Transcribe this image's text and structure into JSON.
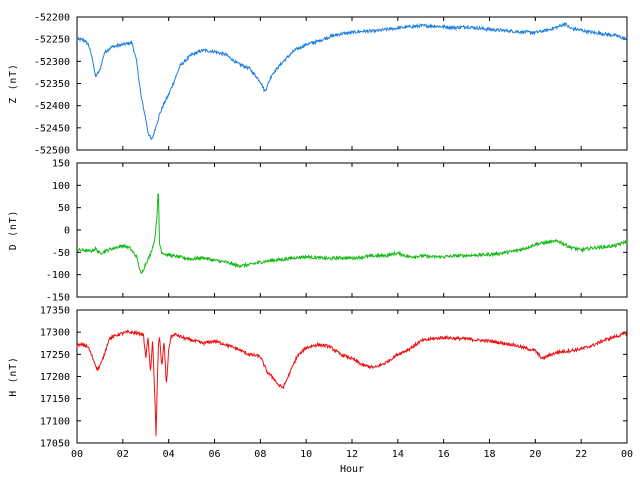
{
  "chart_data": [
    {
      "type": "line",
      "ylabel": "Z (nT)",
      "ylim": [
        -52500,
        -52200
      ],
      "yticks": [
        "-52200",
        "-52250",
        "-52300",
        "-52350",
        "-52400",
        "-52450",
        "-52500"
      ],
      "xlim": [
        0,
        24
      ],
      "color": "#1f7fe0",
      "x": [
        0,
        0.3,
        0.5,
        0.7,
        0.8,
        1.0,
        1.2,
        1.5,
        2.0,
        2.4,
        2.6,
        2.8,
        3.0,
        3.1,
        3.25,
        3.4,
        3.6,
        3.8,
        4.0,
        4.2,
        4.5,
        5.0,
        5.5,
        6.0,
        6.5,
        7.0,
        7.5,
        8.0,
        8.2,
        8.5,
        9.0,
        9.5,
        10.0,
        10.5,
        11.0,
        11.5,
        12.0,
        12.5,
        13.0,
        13.5,
        14.0,
        14.5,
        15.0,
        15.5,
        16.0,
        16.5,
        17.0,
        17.5,
        18.0,
        18.5,
        19.0,
        19.5,
        20.0,
        20.5,
        21.0,
        21.3,
        21.5,
        22.0,
        22.5,
        23.0,
        23.5,
        24.0
      ],
      "values": [
        -52250,
        -52252,
        -52262,
        -52300,
        -52335,
        -52320,
        -52280,
        -52268,
        -52262,
        -52258,
        -52300,
        -52380,
        -52430,
        -52460,
        -52478,
        -52455,
        -52420,
        -52395,
        -52375,
        -52350,
        -52310,
        -52285,
        -52275,
        -52278,
        -52285,
        -52305,
        -52315,
        -52345,
        -52368,
        -52330,
        -52300,
        -52275,
        -52262,
        -52255,
        -52245,
        -52238,
        -52235,
        -52232,
        -52232,
        -52228,
        -52225,
        -52222,
        -52220,
        -52220,
        -52222,
        -52224,
        -52222,
        -52225,
        -52228,
        -52230,
        -52232,
        -52234,
        -52235,
        -52230,
        -52222,
        -52215,
        -52225,
        -52230,
        -52235,
        -52238,
        -52242,
        -52250
      ]
    },
    {
      "type": "line",
      "ylabel": "D (nT)",
      "ylim": [
        -150,
        150
      ],
      "yticks": [
        "150",
        "100",
        "50",
        "0",
        "-50",
        "-100",
        "-150"
      ],
      "xlim": [
        0,
        24
      ],
      "color": "#17b817",
      "x": [
        0,
        0.3,
        0.6,
        0.8,
        1.0,
        1.5,
        2.0,
        2.3,
        2.6,
        2.8,
        3.0,
        3.2,
        3.4,
        3.5,
        3.55,
        3.6,
        3.7,
        3.9,
        4.2,
        4.6,
        5.0,
        5.5,
        6.0,
        6.5,
        7.0,
        7.5,
        8.0,
        8.5,
        9.0,
        9.5,
        10.0,
        10.5,
        11.0,
        11.5,
        12.0,
        12.5,
        13.0,
        13.5,
        14.0,
        14.5,
        15.0,
        15.5,
        16.0,
        16.5,
        17.0,
        17.5,
        18.0,
        18.5,
        19.0,
        19.5,
        20.0,
        20.5,
        21.0,
        21.5,
        22.0,
        22.5,
        23.0,
        23.5,
        24.0
      ],
      "values": [
        -45,
        -45,
        -48,
        -42,
        -52,
        -42,
        -35,
        -40,
        -60,
        -100,
        -75,
        -55,
        -20,
        40,
        95,
        -30,
        -50,
        -55,
        -58,
        -62,
        -65,
        -62,
        -68,
        -72,
        -80,
        -78,
        -72,
        -68,
        -66,
        -62,
        -60,
        -62,
        -64,
        -62,
        -63,
        -60,
        -58,
        -57,
        -52,
        -60,
        -58,
        -60,
        -60,
        -58,
        -57,
        -56,
        -55,
        -52,
        -48,
        -42,
        -32,
        -28,
        -25,
        -38,
        -45,
        -40,
        -38,
        -35,
        -25
      ]
    },
    {
      "type": "line",
      "ylabel": "H (nT)",
      "xlabel": "Hour",
      "ylim": [
        17050,
        17350
      ],
      "yticks": [
        "17350",
        "17300",
        "17250",
        "17200",
        "17150",
        "17100",
        "17050"
      ],
      "xlim": [
        0,
        24
      ],
      "xticks": [
        "00",
        "02",
        "04",
        "06",
        "08",
        "10",
        "12",
        "14",
        "16",
        "18",
        "20",
        "22",
        "00"
      ],
      "color": "#ee1111",
      "x": [
        0,
        0.3,
        0.5,
        0.7,
        0.9,
        1.1,
        1.4,
        1.8,
        2.2,
        2.6,
        2.9,
        3.0,
        3.1,
        3.2,
        3.3,
        3.4,
        3.45,
        3.5,
        3.55,
        3.6,
        3.7,
        3.8,
        3.9,
        4.0,
        4.1,
        4.3,
        4.6,
        5.0,
        5.5,
        6.0,
        6.5,
        7.0,
        7.5,
        8.0,
        8.3,
        8.6,
        8.8,
        9.0,
        9.3,
        9.6,
        10.0,
        10.5,
        11.0,
        11.5,
        12.0,
        12.5,
        13.0,
        13.5,
        14.0,
        14.5,
        15.0,
        15.5,
        16.0,
        16.5,
        17.0,
        17.5,
        18.0,
        18.5,
        19.0,
        19.5,
        20.0,
        20.3,
        20.6,
        21.0,
        21.5,
        22.0,
        22.5,
        23.0,
        23.5,
        24.0
      ],
      "values": [
        17270,
        17272,
        17265,
        17240,
        17215,
        17235,
        17285,
        17295,
        17300,
        17298,
        17295,
        17240,
        17290,
        17210,
        17280,
        17150,
        17060,
        17180,
        17270,
        17290,
        17220,
        17280,
        17180,
        17260,
        17290,
        17295,
        17288,
        17282,
        17275,
        17280,
        17272,
        17262,
        17250,
        17245,
        17210,
        17195,
        17180,
        17175,
        17210,
        17245,
        17265,
        17272,
        17268,
        17250,
        17240,
        17225,
        17220,
        17232,
        17250,
        17262,
        17280,
        17285,
        17288,
        17286,
        17285,
        17282,
        17280,
        17276,
        17272,
        17265,
        17258,
        17240,
        17248,
        17255,
        17258,
        17262,
        17270,
        17282,
        17290,
        17298
      ]
    }
  ]
}
